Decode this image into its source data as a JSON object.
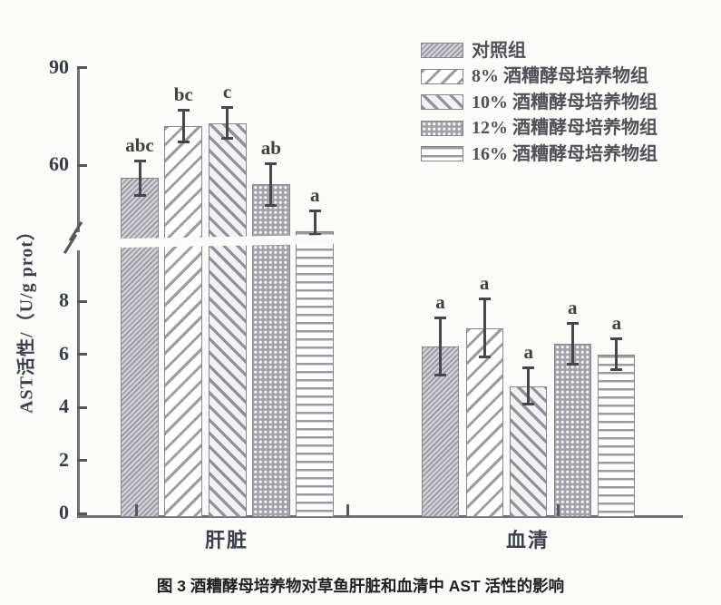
{
  "caption": "图 3 酒糟酵母培养物对草鱼肝脏和血清中 AST 活性的影响",
  "chart_data": {
    "type": "bar",
    "title": "",
    "xlabel": "",
    "ylabel": "AST活性/（U/g prot）",
    "categories": [
      "肝脏",
      "血清"
    ],
    "y_axis": {
      "lower_ticks": [
        0,
        2,
        4,
        6,
        8
      ],
      "upper_ticks": [
        60,
        90
      ],
      "lower_range": [
        0,
        10
      ],
      "upper_range": [
        38,
        90
      ],
      "axis_break": true
    },
    "grid": false,
    "legend_position": "top-right",
    "series": [
      {
        "name": "对照组",
        "pattern": "control",
        "values": [
          56,
          6.3
        ],
        "errors": [
          5.5,
          1.1
        ],
        "sig_letters": [
          "abc",
          "a"
        ]
      },
      {
        "name": "8% 酒糟酵母培养物组",
        "pattern": "diag8",
        "values": [
          72,
          7.0
        ],
        "errors": [
          5.0,
          1.1
        ],
        "sig_letters": [
          "bc",
          "a"
        ]
      },
      {
        "name": "10% 酒糟酵母培养物组",
        "pattern": "diag10",
        "values": [
          73,
          4.8
        ],
        "errors": [
          5.0,
          0.7
        ],
        "sig_letters": [
          "c",
          "a"
        ]
      },
      {
        "name": "12% 酒糟酵母培养物组",
        "pattern": "dots",
        "values": [
          54,
          6.4
        ],
        "errors": [
          6.5,
          0.8
        ],
        "sig_letters": [
          "ab",
          "a"
        ]
      },
      {
        "name": "16% 酒糟酵母培养物组",
        "pattern": "hlines",
        "values": [
          39.5,
          6.0
        ],
        "errors": [
          6.5,
          0.6
        ],
        "sig_letters": [
          "a",
          "a"
        ]
      }
    ],
    "colors": {
      "axis": "#6f6f75",
      "error_bar": "#46464c",
      "tick_label": "#333e4d",
      "sig_letter": "#463f37",
      "bar_border": "#86868e"
    }
  }
}
